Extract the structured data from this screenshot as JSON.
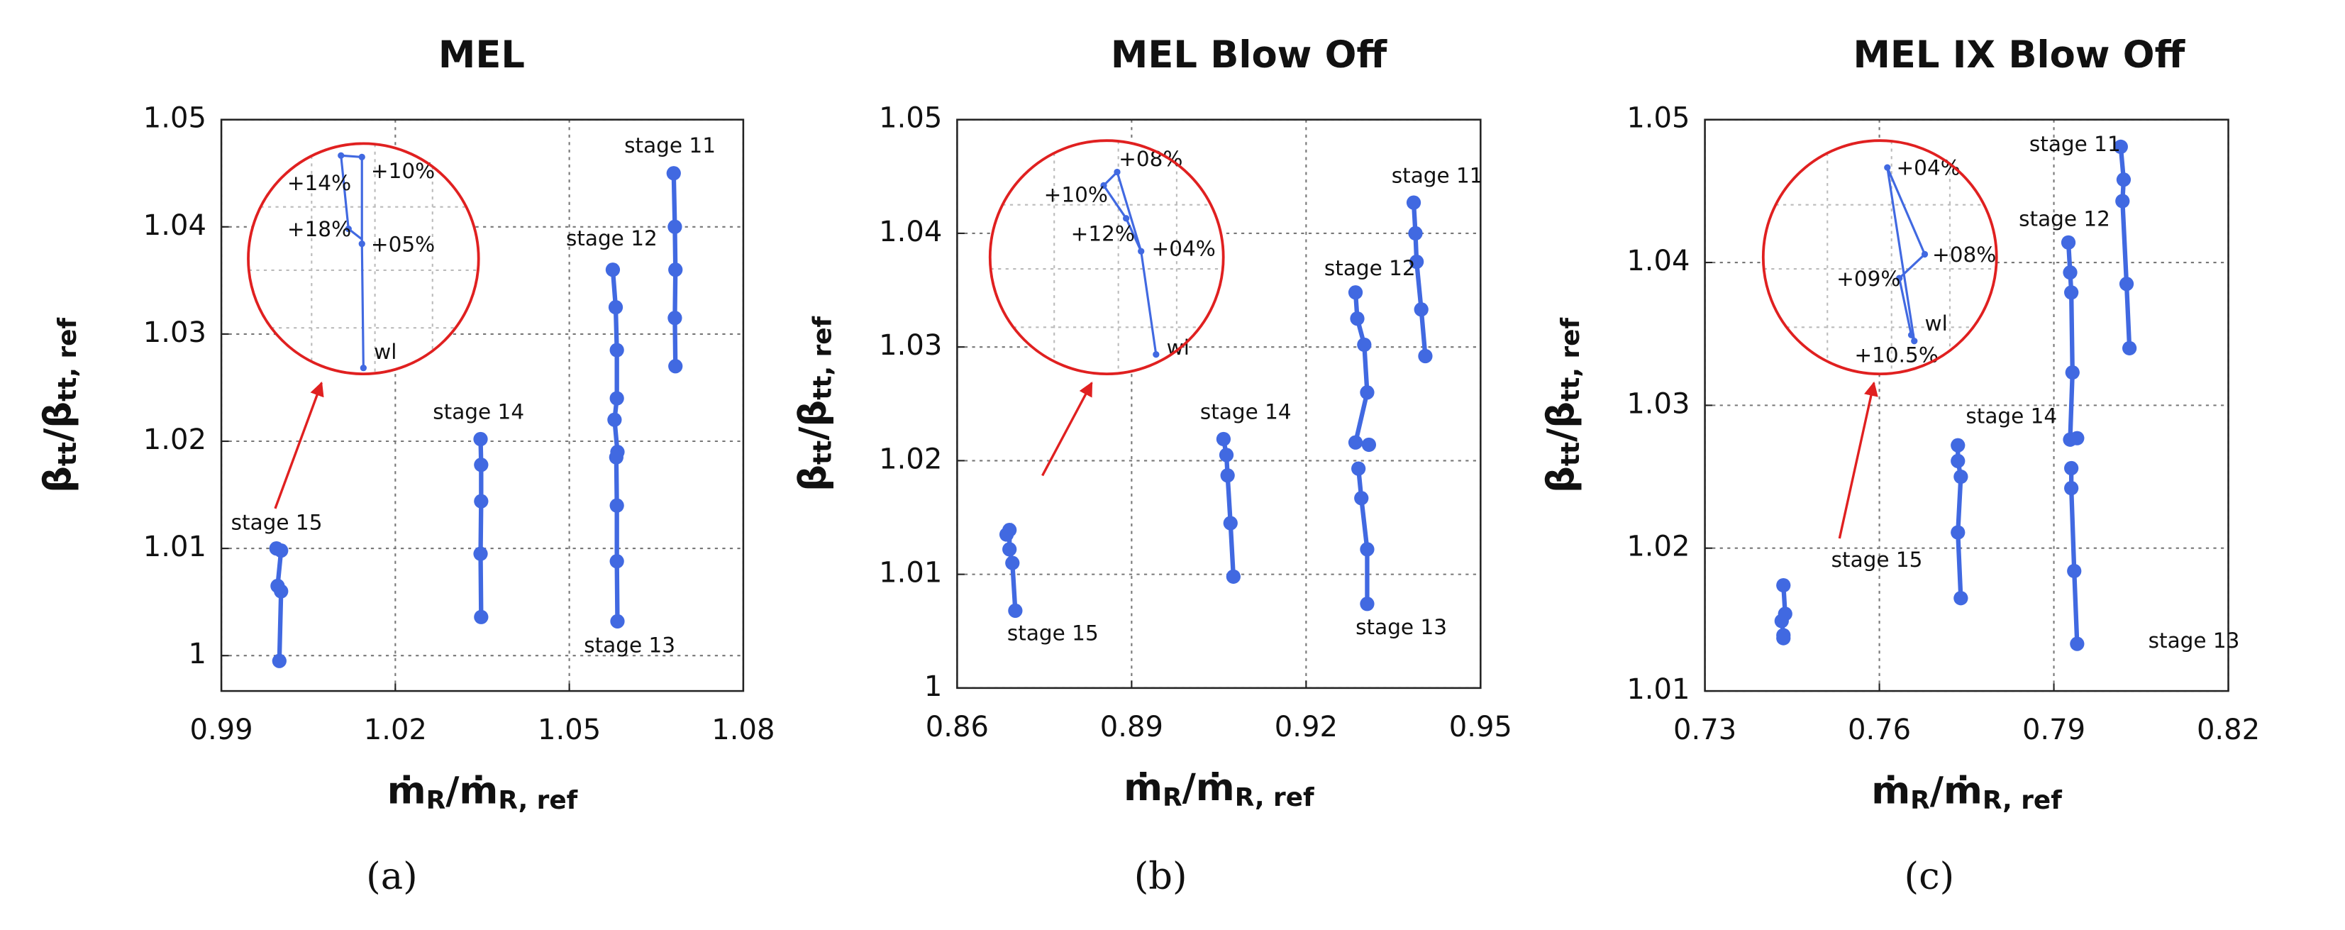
{
  "chart_data": [
    {
      "type": "line",
      "title": "MEL",
      "caption": "(a)",
      "xlabel_parts": [
        "ṁ",
        "R",
        "/ṁ",
        "R, ref"
      ],
      "ylabel_parts": [
        "β",
        "tt",
        "/β",
        "tt, ref"
      ],
      "xlim": [
        0.99,
        1.08
      ],
      "xticks": [
        0.99,
        1.02,
        1.05,
        1.08
      ],
      "ylim": [
        0.9967,
        1.05
      ],
      "yticks": [
        1,
        1.01,
        1.02,
        1.03,
        1.04,
        1.05
      ],
      "grid": true,
      "series": [
        {
          "name": "stage 11",
          "color": "#4169e1",
          "x": [
            1.068,
            1.0682,
            1.0683,
            1.0682,
            1.0683
          ],
          "values": [
            1.045,
            1.04,
            1.036,
            1.0315,
            1.027
          ]
        },
        {
          "name": "stage 12",
          "color": "#4169e1",
          "x": [
            1.0575,
            1.058,
            1.0582,
            1.0582,
            1.0578,
            1.0583
          ],
          "values": [
            1.036,
            1.0325,
            1.0285,
            1.024,
            1.022,
            1.019
          ]
        },
        {
          "name": "stage 13",
          "color": "#4169e1",
          "x": [
            1.0581,
            1.0582,
            1.0582,
            1.0583
          ],
          "values": [
            1.0185,
            1.014,
            1.0088,
            1.0032
          ]
        },
        {
          "name": "stage 14",
          "color": "#4169e1",
          "x": [
            1.0347,
            1.0348,
            1.0348,
            1.0347,
            1.0348
          ],
          "values": [
            1.0202,
            1.0178,
            1.0144,
            1.0095,
            1.0036
          ]
        },
        {
          "name": "stage 15",
          "color": "#4169e1",
          "x": [
            0.9995,
            1.0003,
            0.9997,
            1.0003,
            1.0
          ],
          "values": [
            1.01,
            1.0098,
            1.0065,
            1.006,
            0.9995
          ]
        }
      ],
      "inset_labels": [
        "+14%",
        "+10%",
        "+18%",
        "+05%",
        "wl"
      ]
    },
    {
      "type": "line",
      "title": "MEL Blow Off",
      "caption": "(b)",
      "xlabel_parts": [
        "ṁ",
        "R",
        "/ṁ",
        "R, ref"
      ],
      "ylabel_parts": [
        "β",
        "tt",
        "/β",
        "tt, ref"
      ],
      "xlim": [
        0.86,
        0.95
      ],
      "xticks": [
        0.86,
        0.89,
        0.92,
        0.95
      ],
      "ylim": [
        1,
        1.05
      ],
      "yticks": [
        1,
        1.01,
        1.02,
        1.03,
        1.04,
        1.05
      ],
      "grid": true,
      "series": [
        {
          "name": "stage 11",
          "color": "#4169e1",
          "x": [
            0.9385,
            0.9388,
            0.939,
            0.9398,
            0.9405
          ],
          "values": [
            1.0427,
            1.04,
            1.0375,
            1.0333,
            1.0292
          ]
        },
        {
          "name": "stage 12",
          "color": "#4169e1",
          "x": [
            0.9285,
            0.9288,
            0.93,
            0.9305,
            0.9285,
            0.9308
          ],
          "values": [
            1.0348,
            1.0325,
            1.0302,
            1.026,
            1.0216,
            1.0214
          ]
        },
        {
          "name": "stage 13",
          "color": "#4169e1",
          "x": [
            0.929,
            0.9295,
            0.9305,
            0.9305
          ],
          "values": [
            1.0193,
            1.0167,
            1.0122,
            1.0074
          ]
        },
        {
          "name": "stage 14",
          "color": "#4169e1",
          "x": [
            0.9058,
            0.9063,
            0.9065,
            0.907,
            0.9075
          ],
          "values": [
            1.0219,
            1.0205,
            1.0187,
            1.0145,
            1.0098
          ]
        },
        {
          "name": "stage 15",
          "color": "#4169e1",
          "x": [
            0.8685,
            0.869,
            0.869,
            0.8695,
            0.87
          ],
          "values": [
            1.0135,
            1.0139,
            1.0122,
            1.011,
            1.0068
          ]
        }
      ],
      "inset_labels": [
        "+08%",
        "+10%",
        "+12%",
        "+04%",
        "wl"
      ]
    },
    {
      "type": "line",
      "title": "MEL IX Blow Off",
      "caption": "(c)",
      "xlabel_parts": [
        "ṁ",
        "R",
        "/ṁ",
        "R, ref"
      ],
      "ylabel_parts": [
        "β",
        "tt",
        "/β",
        "tt, ref"
      ],
      "xlim": [
        0.73,
        0.82
      ],
      "xticks": [
        0.73,
        0.76,
        0.79,
        0.82
      ],
      "ylim": [
        1.01,
        1.05
      ],
      "yticks": [
        1.01,
        1.02,
        1.03,
        1.04,
        1.05
      ],
      "grid": true,
      "series": [
        {
          "name": "stage 11",
          "color": "#4169e1",
          "x": [
            0.8015,
            0.802,
            0.8018,
            0.8025,
            0.803
          ],
          "values": [
            1.0481,
            1.0458,
            1.0443,
            1.0385,
            1.034
          ]
        },
        {
          "name": "stage 12",
          "color": "#4169e1",
          "x": [
            0.7925,
            0.7928,
            0.793,
            0.7932,
            0.7928,
            0.794
          ],
          "values": [
            1.0414,
            1.0393,
            1.0379,
            1.0323,
            1.0276,
            1.0277
          ]
        },
        {
          "name": "stage 13",
          "color": "#4169e1",
          "x": [
            0.793,
            0.793,
            0.7935,
            0.794
          ],
          "values": [
            1.0256,
            1.0242,
            1.0184,
            1.0133
          ]
        },
        {
          "name": "stage 14",
          "color": "#4169e1",
          "x": [
            0.7735,
            0.7735,
            0.774,
            0.7735,
            0.774
          ],
          "values": [
            1.0272,
            1.0261,
            1.025,
            1.0211,
            1.0165
          ]
        },
        {
          "name": "stage 15",
          "color": "#4169e1",
          "x": [
            0.7435,
            0.7438,
            0.7432,
            0.7435,
            0.7435
          ],
          "values": [
            1.0174,
            1.0154,
            1.0149,
            1.0139,
            1.0137
          ]
        }
      ],
      "inset_labels": [
        "+04%",
        "+08%",
        "+09%",
        "wl",
        "+10.5%"
      ]
    }
  ]
}
